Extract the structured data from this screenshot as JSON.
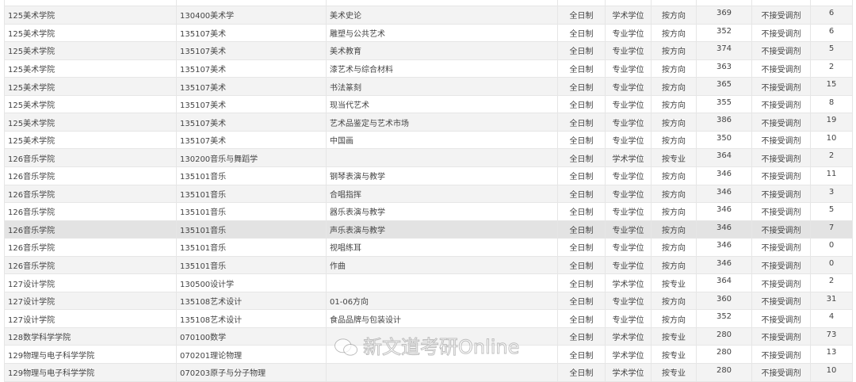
{
  "table": {
    "rows": [
      {
        "college": "",
        "major": "",
        "direction": "",
        "mode": "",
        "degree": "",
        "type": "",
        "score": "",
        "adjust": "",
        "count": ""
      },
      {
        "college": "125美术学院",
        "major": "130400美术学",
        "direction": "美术史论",
        "mode": "全日制",
        "degree": "学术学位",
        "type": "按方向",
        "score": "369",
        "adjust": "不接受调剂",
        "count": "6"
      },
      {
        "college": "125美术学院",
        "major": "135107美术",
        "direction": "雕塑与公共艺术",
        "mode": "全日制",
        "degree": "专业学位",
        "type": "按方向",
        "score": "352",
        "adjust": "不接受调剂",
        "count": "6"
      },
      {
        "college": "125美术学院",
        "major": "135107美术",
        "direction": "美术教育",
        "mode": "全日制",
        "degree": "专业学位",
        "type": "按方向",
        "score": "374",
        "adjust": "不接受调剂",
        "count": "5"
      },
      {
        "college": "125美术学院",
        "major": "135107美术",
        "direction": "漆艺术与综合材料",
        "mode": "全日制",
        "degree": "专业学位",
        "type": "按方向",
        "score": "363",
        "adjust": "不接受调剂",
        "count": "2"
      },
      {
        "college": "125美术学院",
        "major": "135107美术",
        "direction": "书法篆刻",
        "mode": "全日制",
        "degree": "专业学位",
        "type": "按方向",
        "score": "365",
        "adjust": "不接受调剂",
        "count": "15"
      },
      {
        "college": "125美术学院",
        "major": "135107美术",
        "direction": "现当代艺术",
        "mode": "全日制",
        "degree": "专业学位",
        "type": "按方向",
        "score": "355",
        "adjust": "不接受调剂",
        "count": "8"
      },
      {
        "college": "125美术学院",
        "major": "135107美术",
        "direction": "艺术品鉴定与艺术市场",
        "mode": "全日制",
        "degree": "专业学位",
        "type": "按方向",
        "score": "386",
        "adjust": "不接受调剂",
        "count": "19"
      },
      {
        "college": "125美术学院",
        "major": "135107美术",
        "direction": "中国画",
        "mode": "全日制",
        "degree": "专业学位",
        "type": "按方向",
        "score": "350",
        "adjust": "不接受调剂",
        "count": "10"
      },
      {
        "college": "126音乐学院",
        "major": "130200音乐与舞蹈学",
        "direction": "",
        "mode": "全日制",
        "degree": "学术学位",
        "type": "按专业",
        "score": "364",
        "adjust": "不接受调剂",
        "count": "2"
      },
      {
        "college": "126音乐学院",
        "major": "135101音乐",
        "direction": "钢琴表演与教学",
        "mode": "全日制",
        "degree": "专业学位",
        "type": "按方向",
        "score": "346",
        "adjust": "不接受调剂",
        "count": "11"
      },
      {
        "college": "126音乐学院",
        "major": "135101音乐",
        "direction": "合唱指挥",
        "mode": "全日制",
        "degree": "专业学位",
        "type": "按方向",
        "score": "346",
        "adjust": "不接受调剂",
        "count": "3"
      },
      {
        "college": "126音乐学院",
        "major": "135101音乐",
        "direction": "器乐表演与教学",
        "mode": "全日制",
        "degree": "专业学位",
        "type": "按方向",
        "score": "346",
        "adjust": "不接受调剂",
        "count": "5"
      },
      {
        "college": "126音乐学院",
        "major": "135101音乐",
        "direction": "声乐表演与教学",
        "mode": "全日制",
        "degree": "专业学位",
        "type": "按方向",
        "score": "346",
        "adjust": "不接受调剂",
        "count": "7"
      },
      {
        "college": "126音乐学院",
        "major": "135101音乐",
        "direction": "视唱练耳",
        "mode": "全日制",
        "degree": "专业学位",
        "type": "按方向",
        "score": "346",
        "adjust": "不接受调剂",
        "count": "0"
      },
      {
        "college": "126音乐学院",
        "major": "135101音乐",
        "direction": "作曲",
        "mode": "全日制",
        "degree": "专业学位",
        "type": "按方向",
        "score": "346",
        "adjust": "不接受调剂",
        "count": "0"
      },
      {
        "college": "127设计学院",
        "major": "130500设计学",
        "direction": "",
        "mode": "全日制",
        "degree": "学术学位",
        "type": "按专业",
        "score": "364",
        "adjust": "不接受调剂",
        "count": "2"
      },
      {
        "college": "127设计学院",
        "major": "135108艺术设计",
        "direction": "01-06方向",
        "mode": "全日制",
        "degree": "专业学位",
        "type": "按方向",
        "score": "360",
        "adjust": "不接受调剂",
        "count": "31"
      },
      {
        "college": "127设计学院",
        "major": "135108艺术设计",
        "direction": "食品品牌与包装设计",
        "mode": "全日制",
        "degree": "专业学位",
        "type": "按方向",
        "score": "352",
        "adjust": "不接受调剂",
        "count": "4"
      },
      {
        "college": "128数学科学学院",
        "major": "070100数学",
        "direction": "",
        "mode": "全日制",
        "degree": "学术学位",
        "type": "按专业",
        "score": "280",
        "adjust": "不接受调剂",
        "count": "73"
      },
      {
        "college": "129物理与电子科学学院",
        "major": "070201理论物理",
        "direction": "",
        "mode": "全日制",
        "degree": "学术学位",
        "type": "按专业",
        "score": "280",
        "adjust": "不接受调剂",
        "count": "13"
      },
      {
        "college": "129物理与电子科学学院",
        "major": "070203原子与分子物理",
        "direction": "",
        "mode": "全日制",
        "degree": "学术学位",
        "type": "按专业",
        "score": "280",
        "adjust": "不接受调剂",
        "count": "10"
      }
    ],
    "highlighted_row": 13
  },
  "watermark": {
    "text": "新文道考研Online",
    "icon": "wechat-icon"
  }
}
